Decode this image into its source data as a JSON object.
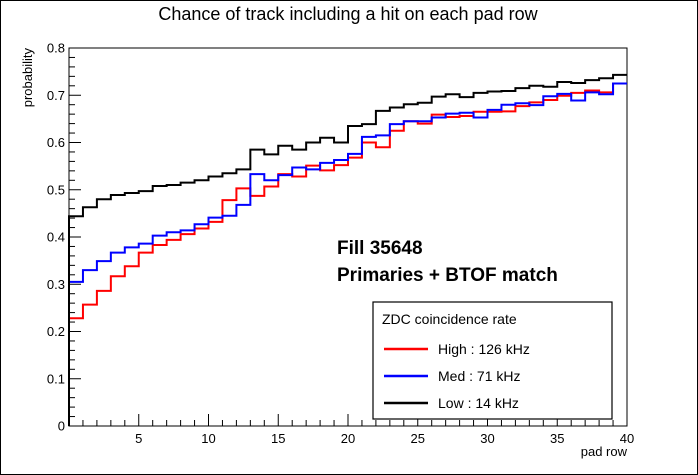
{
  "chart_data": {
    "type": "line",
    "step": true,
    "title": "Chance of track including a hit on each pad row",
    "xlabel": "pad row",
    "ylabel": "probability",
    "xlim": [
      0,
      40
    ],
    "ylim": [
      0,
      0.8
    ],
    "x_ticks": [
      5,
      10,
      15,
      20,
      25,
      30,
      35,
      40
    ],
    "y_ticks": [
      0,
      0.1,
      0.2,
      0.3,
      0.4,
      0.5,
      0.6,
      0.7,
      0.8
    ],
    "bins": [
      1,
      2,
      3,
      4,
      5,
      6,
      7,
      8,
      9,
      10,
      11,
      12,
      13,
      14,
      15,
      16,
      17,
      18,
      19,
      20,
      21,
      22,
      23,
      24,
      25,
      26,
      27,
      28,
      29,
      30,
      31,
      32,
      33,
      34,
      35,
      36,
      37,
      38,
      39,
      40
    ],
    "annotation_lines": [
      "Fill 35648",
      "Primaries + BTOF match"
    ],
    "legend_title": "ZDC coincidence rate",
    "legend_position": "bottom-right",
    "series": [
      {
        "name": "High : 126 kHz",
        "color": "#ff0000",
        "values": [
          0.228,
          0.257,
          0.286,
          0.317,
          0.338,
          0.367,
          0.383,
          0.394,
          0.406,
          0.418,
          0.432,
          0.478,
          0.503,
          0.487,
          0.507,
          0.533,
          0.528,
          0.551,
          0.541,
          0.552,
          0.568,
          0.6,
          0.59,
          0.625,
          0.645,
          0.64,
          0.659,
          0.654,
          0.656,
          0.665,
          0.665,
          0.666,
          0.677,
          0.685,
          0.69,
          0.699,
          0.705,
          0.71,
          0.706,
          0.725
        ]
      },
      {
        "name": "Med : 71 kHz",
        "color": "#0000ff",
        "values": [
          0.305,
          0.33,
          0.349,
          0.367,
          0.378,
          0.386,
          0.403,
          0.41,
          0.414,
          0.427,
          0.441,
          0.445,
          0.468,
          0.533,
          0.52,
          0.531,
          0.547,
          0.543,
          0.557,
          0.563,
          0.576,
          0.612,
          0.615,
          0.639,
          0.645,
          0.645,
          0.653,
          0.661,
          0.663,
          0.653,
          0.669,
          0.68,
          0.683,
          0.679,
          0.698,
          0.703,
          0.689,
          0.706,
          0.702,
          0.725
        ]
      },
      {
        "name": "Low : 14 kHz",
        "color": "#000000",
        "values": [
          0.444,
          0.463,
          0.48,
          0.489,
          0.493,
          0.497,
          0.508,
          0.51,
          0.515,
          0.52,
          0.528,
          0.535,
          0.543,
          0.585,
          0.575,
          0.593,
          0.585,
          0.6,
          0.61,
          0.6,
          0.635,
          0.639,
          0.667,
          0.674,
          0.681,
          0.684,
          0.697,
          0.702,
          0.696,
          0.705,
          0.708,
          0.709,
          0.715,
          0.72,
          0.718,
          0.728,
          0.726,
          0.732,
          0.736,
          0.743
        ]
      }
    ]
  }
}
